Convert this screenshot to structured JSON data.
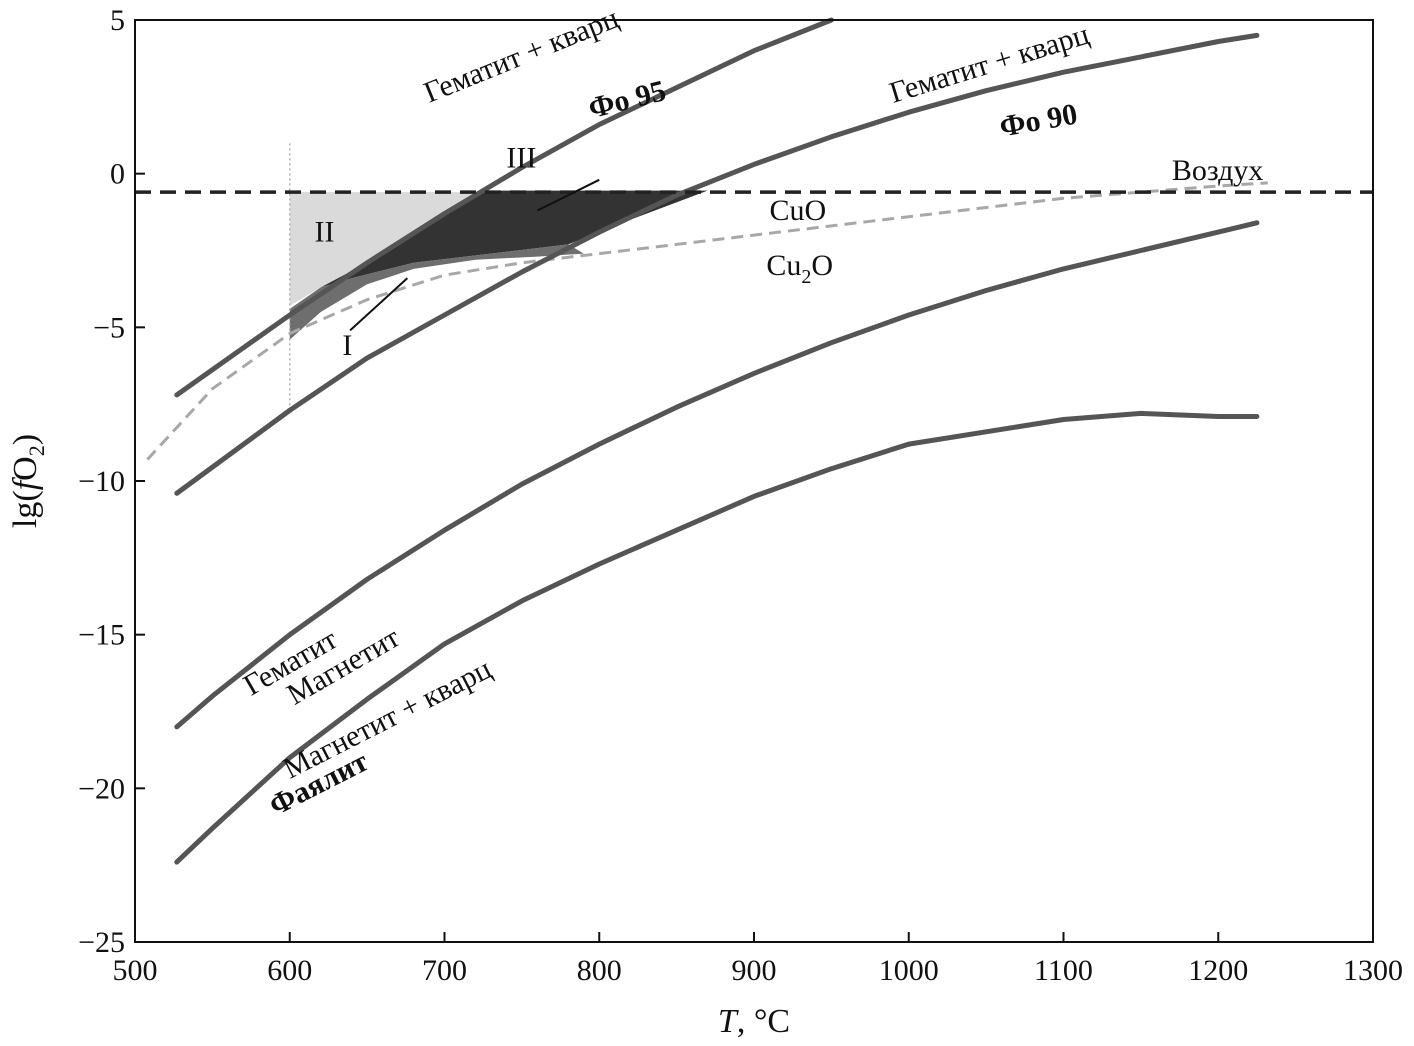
{
  "chart_data": {
    "type": "line",
    "xlabel_italic": "T",
    "xlabel_rest": ", °C",
    "ylabel_pre": "lg(",
    "ylabel_f": "f",
    "ylabel_o": "O",
    "ylabel_sub": "2",
    "ylabel_post": ")",
    "xlim": [
      500,
      1300
    ],
    "ylim": [
      -25,
      5
    ],
    "x_ticks": [
      500,
      600,
      700,
      800,
      900,
      1000,
      1100,
      1200,
      1300
    ],
    "y_ticks": [
      5,
      0,
      -5,
      -10,
      -15,
      -20,
      -25
    ],
    "x_tick_labels": [
      "500",
      "600",
      "700",
      "800",
      "900",
      "1000",
      "1100",
      "1200",
      "1300"
    ],
    "y_tick_labels": [
      "5",
      "0",
      "−5",
      "−10",
      "−15",
      "−20",
      "−25"
    ],
    "grid": false,
    "colors": {
      "buffer_line": "#555555",
      "cu_line": "#a8a8a8",
      "air_line": "#222222",
      "region_I": "#6e6e6e",
      "region_II": "#dadada",
      "region_III": "#333333"
    },
    "series": [
      {
        "id": "hq-fo95",
        "x": [
          527,
          600,
          650,
          700,
          750,
          800,
          850,
          900,
          950
        ],
        "y": [
          -7.2,
          -4.6,
          -2.9,
          -1.3,
          0.2,
          1.6,
          2.8,
          4.0,
          5.0
        ]
      },
      {
        "id": "hq-fo90",
        "x": [
          527,
          600,
          650,
          700,
          750,
          800,
          850,
          900,
          950,
          1000,
          1050,
          1100,
          1150,
          1200,
          1225
        ],
        "y": [
          -10.4,
          -7.7,
          -6.0,
          -4.6,
          -3.2,
          -1.9,
          -0.7,
          0.3,
          1.2,
          2.0,
          2.7,
          3.3,
          3.8,
          4.3,
          4.5
        ]
      },
      {
        "id": "hematite-magnetite",
        "x": [
          527,
          550,
          600,
          650,
          700,
          750,
          800,
          850,
          900,
          950,
          1000,
          1050,
          1100,
          1150,
          1200,
          1225
        ],
        "y": [
          -18.0,
          -17.0,
          -15.0,
          -13.2,
          -11.6,
          -10.1,
          -8.8,
          -7.6,
          -6.5,
          -5.5,
          -4.6,
          -3.8,
          -3.1,
          -2.5,
          -1.9,
          -1.6
        ]
      },
      {
        "id": "magnetite-quartz-fayalite",
        "x": [
          527,
          550,
          600,
          650,
          700,
          750,
          800,
          850,
          900,
          950,
          1000,
          1050,
          1100,
          1150,
          1200,
          1225
        ],
        "y": [
          -22.4,
          -21.3,
          -19.0,
          -17.1,
          -15.3,
          -13.9,
          -12.7,
          -11.6,
          -10.5,
          -9.6,
          -8.8,
          -8.4,
          -8.0,
          -7.8,
          -7.9,
          -7.9
        ]
      }
    ],
    "cu_buffer": {
      "id": "cuo-cu2o",
      "x": [
        508,
        550,
        600,
        650,
        700,
        750,
        800,
        850,
        900,
        950,
        1000,
        1050,
        1100,
        1150,
        1200,
        1232
      ],
      "y": [
        -9.3,
        -7.0,
        -5.2,
        -4.1,
        -3.3,
        -2.9,
        -2.6,
        -2.3,
        -2.0,
        -1.7,
        -1.4,
        -1.1,
        -0.8,
        -0.6,
        -0.4,
        -0.3
      ]
    },
    "air": {
      "id": "air",
      "y": -0.6,
      "x": [
        500,
        1300
      ]
    },
    "vline": {
      "x": 600,
      "y": [
        -7.7,
        1.0
      ]
    },
    "regions": [
      {
        "id": "region-II",
        "x": [
          600,
          600,
          720,
          720,
          700,
          650,
          600
        ],
        "y": [
          -0.6,
          -4.3,
          -0.6,
          -0.6,
          -1.3,
          -2.9,
          -4.3
        ],
        "poly": [
          [
            600,
            -0.6
          ],
          [
            720,
            -0.6
          ],
          [
            700,
            -1.3
          ],
          [
            650,
            -2.9
          ],
          [
            620,
            -3.7
          ],
          [
            600,
            -4.3
          ]
        ]
      },
      {
        "id": "region-III",
        "poly": [
          [
            620,
            -3.7
          ],
          [
            650,
            -2.9
          ],
          [
            700,
            -1.3
          ],
          [
            725,
            -0.55
          ],
          [
            870,
            -0.55
          ],
          [
            820,
            -1.5
          ],
          [
            780,
            -2.3
          ],
          [
            730,
            -2.6
          ],
          [
            680,
            -2.9
          ],
          [
            640,
            -3.4
          ]
        ]
      },
      {
        "id": "region-I",
        "poly": [
          [
            600,
            -4.4
          ],
          [
            620,
            -3.7
          ],
          [
            640,
            -3.4
          ],
          [
            680,
            -2.9
          ],
          [
            730,
            -2.6
          ],
          [
            780,
            -2.3
          ],
          [
            790,
            -2.6
          ],
          [
            760,
            -2.7
          ],
          [
            720,
            -2.8
          ],
          [
            680,
            -3.1
          ],
          [
            650,
            -3.6
          ],
          [
            620,
            -4.5
          ],
          [
            600,
            -5.4
          ]
        ]
      }
    ],
    "annotations": [
      {
        "id": "label-hq-upper",
        "text": "Гематит + кварц",
        "x": 690,
        "y": 2.3,
        "rot": -22
      },
      {
        "id": "label-fo95",
        "text": "Фо 95",
        "x": 795,
        "y": 1.8,
        "rot": -14,
        "bold": true
      },
      {
        "id": "label-hq-lower",
        "text": "Гематит + кварц",
        "x": 990,
        "y": 2.3,
        "rot": -17
      },
      {
        "id": "label-fo90",
        "text": "Фо 90",
        "x": 1060,
        "y": 1.2,
        "rot": -10,
        "bold": true
      },
      {
        "id": "label-air",
        "text": "Воздух",
        "x": 1170,
        "y": -0.2,
        "rot": 0
      },
      {
        "id": "label-cuo",
        "text": "CuO",
        "x": 910,
        "y": -1.5,
        "rot": 0
      },
      {
        "id": "label-region-II",
        "text": "II",
        "x": 616,
        "y": -2.2,
        "rot": 0
      },
      {
        "id": "label-region-III",
        "text": "III",
        "x": 740,
        "y": 0.2,
        "rot": 0
      },
      {
        "id": "label-region-I",
        "text": "I",
        "x": 634,
        "y": -5.9,
        "rot": 0
      },
      {
        "id": "label-hematite",
        "text": "Гематит",
        "x": 575,
        "y": -17.0,
        "rot": -30
      },
      {
        "id": "label-magnetite",
        "text": "Магнетит",
        "x": 603,
        "y": -17.3,
        "rot": -30
      },
      {
        "id": "label-mq",
        "text": "Магнетит + кварц",
        "x": 600,
        "y": -19.7,
        "rot": -27
      },
      {
        "id": "label-fayalite",
        "text": "Фаялит",
        "x": 591,
        "y": -20.9,
        "rot": -27,
        "bold": true
      }
    ],
    "cu2o_label": {
      "id": "label-cu2o",
      "text_main": "Cu",
      "text_sub": "2",
      "text_tail": "O",
      "x": 908,
      "y": -3.3
    },
    "leader_lines": [
      {
        "id": "leader-I",
        "from": [
          639,
          -5.1
        ],
        "to": [
          676,
          -3.4
        ]
      },
      {
        "id": "leader-III",
        "from": [
          760,
          -1.2
        ],
        "to": [
          800,
          -0.2
        ]
      }
    ]
  }
}
